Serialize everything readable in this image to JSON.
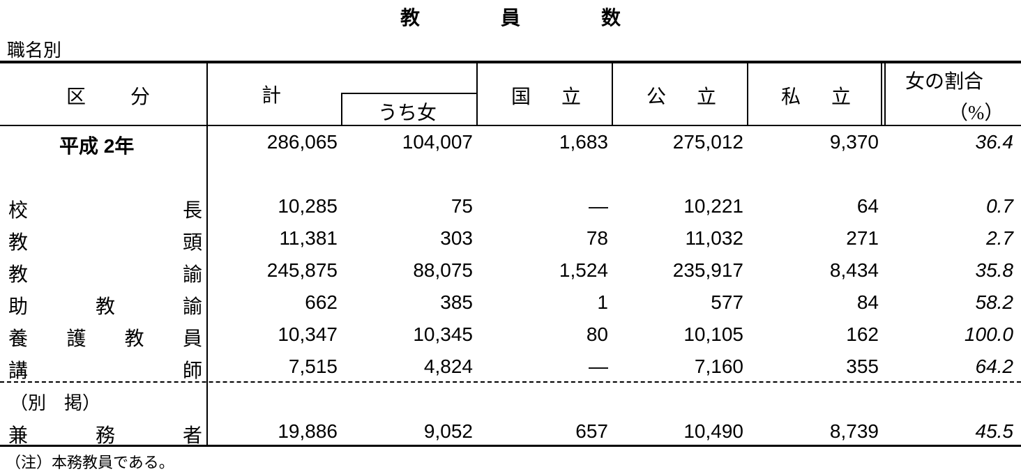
{
  "title_chars": [
    "教",
    "員",
    "数"
  ],
  "subtitle": "職名別",
  "headers": {
    "category": [
      "区",
      "分"
    ],
    "total": "計",
    "female": "うち女",
    "national": [
      "国",
      "立"
    ],
    "public": [
      "公",
      "立"
    ],
    "private": [
      "私",
      "立"
    ],
    "ratio_line1": "女の割合",
    "ratio_line2": "（%）"
  },
  "summary": {
    "label": "平成 2年",
    "values": [
      "286,065",
      "104,007",
      "1,683",
      "275,012",
      "9,370",
      "36.4"
    ]
  },
  "rows": [
    {
      "chars": [
        "校",
        "長"
      ],
      "values": [
        "10,285",
        "75",
        "—",
        "10,221",
        "64",
        "0.7"
      ]
    },
    {
      "chars": [
        "教",
        "頭"
      ],
      "values": [
        "11,381",
        "303",
        "78",
        "11,032",
        "271",
        "2.7"
      ]
    },
    {
      "chars": [
        "教",
        "諭"
      ],
      "values": [
        "245,875",
        "88,075",
        "1,524",
        "235,917",
        "8,434",
        "35.8"
      ]
    },
    {
      "chars": [
        "助",
        "教",
        "諭"
      ],
      "values": [
        "662",
        "385",
        "1",
        "577",
        "84",
        "58.2"
      ]
    },
    {
      "chars": [
        "養",
        "護",
        "教",
        "員"
      ],
      "values": [
        "10,347",
        "10,345",
        "80",
        "10,105",
        "162",
        "100.0"
      ]
    },
    {
      "chars": [
        "講",
        "師"
      ],
      "values": [
        "7,515",
        "4,824",
        "—",
        "7,160",
        "355",
        "64.2"
      ]
    }
  ],
  "separate": {
    "heading": "（別　掲）",
    "chars": [
      "兼",
      "務",
      "者"
    ],
    "values": [
      "19,886",
      "9,052",
      "657",
      "10,490",
      "8,739",
      "45.5"
    ]
  },
  "note": "（注）本務教員である。"
}
